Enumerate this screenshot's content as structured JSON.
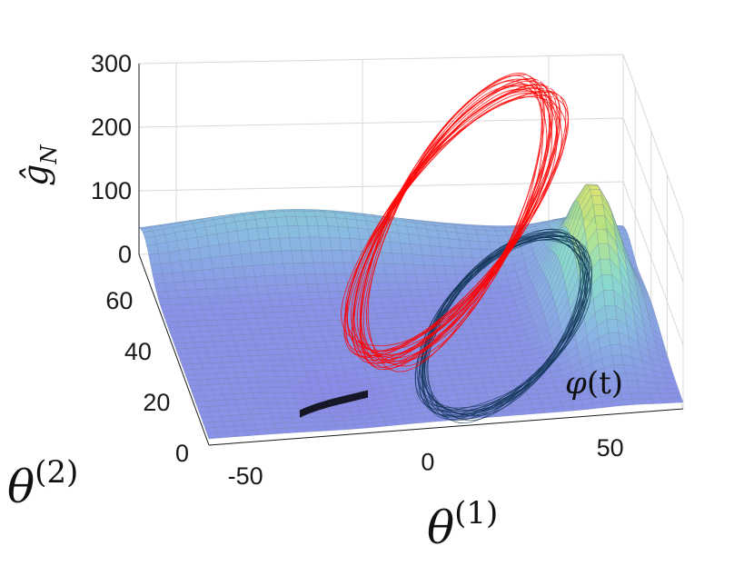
{
  "chart_data": {
    "type": "surface",
    "title": "",
    "x_axis": {
      "label_base": "θ",
      "label_sup": "(1)",
      "ticks": [
        -50,
        0,
        50
      ],
      "tick_labels": [
        "-50",
        "0",
        "50"
      ],
      "range": [
        -60,
        70
      ]
    },
    "y_axis": {
      "label_base": "θ",
      "label_sup": "(2)",
      "ticks": [
        0,
        20,
        40,
        60
      ],
      "tick_labels": [
        "0",
        "20",
        "40",
        "60"
      ],
      "range": [
        0,
        75
      ]
    },
    "z_axis": {
      "label_base": "ĝ",
      "label_sub": "N",
      "ticks": [
        0,
        100,
        200,
        300
      ],
      "tick_labels": [
        "0",
        "100",
        "200",
        "300"
      ],
      "range": [
        0,
        300
      ]
    },
    "grid": true,
    "surface": {
      "colormap": "parula-like",
      "colors": [
        "#8080e6",
        "#7fb0e0",
        "#7fd6c8",
        "#b7e47a",
        "#f3e36a"
      ]
    },
    "series": [
      {
        "color": "#ff0000",
        "description_label": "",
        "height": "on surface"
      },
      {
        "color": "#0f3354",
        "description_label": "",
        "height": "on floor"
      },
      {
        "color": "#000000",
        "description_label": "",
        "height": "on floor"
      }
    ],
    "annotations": [
      {
        "text_base": "φ",
        "text_paren": "(t)",
        "near_series": 1
      }
    ]
  }
}
